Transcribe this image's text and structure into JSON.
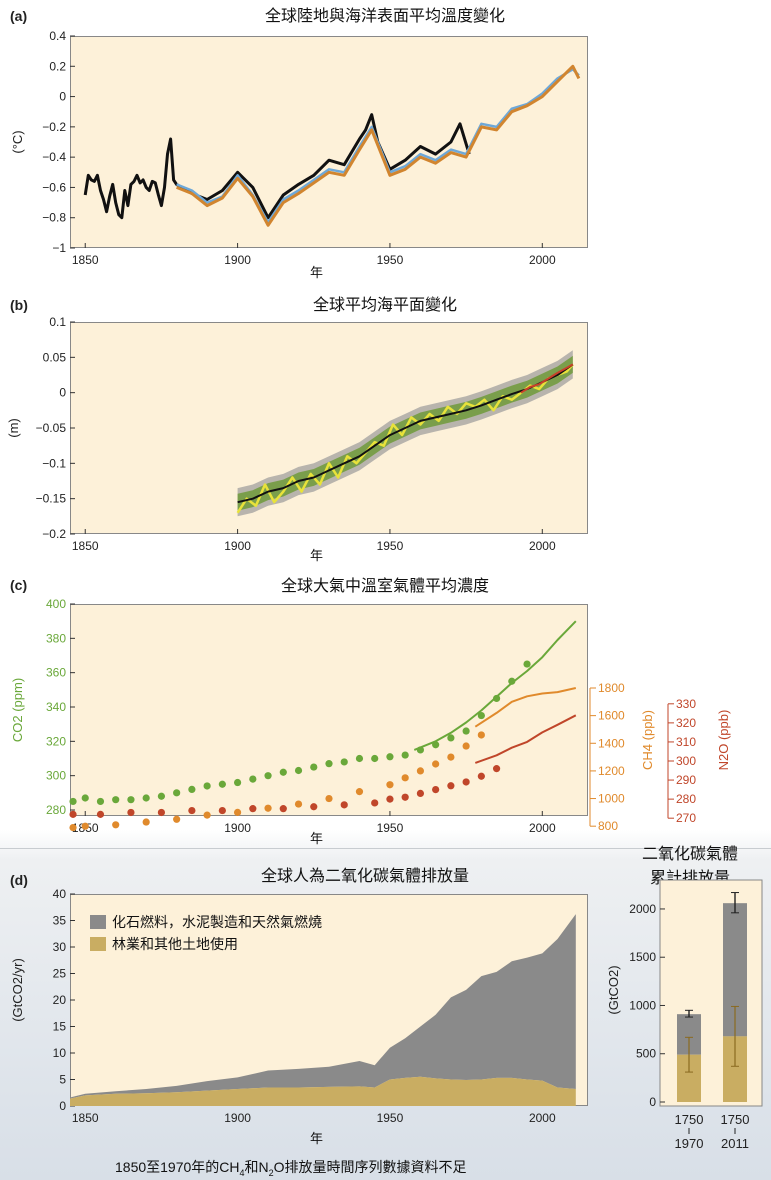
{
  "panels": {
    "a": {
      "letter": "(a)",
      "title": "全球陸地與海洋表面平均溫度變化",
      "xlabel": "年",
      "ylabel": "(°C)"
    },
    "b": {
      "letter": "(b)",
      "title": "全球平均海平面變化",
      "xlabel": "年",
      "ylabel": "(m)"
    },
    "c": {
      "letter": "(c)",
      "title": "全球大氣中溫室氣體平均濃度",
      "xlabel": "年",
      "ylabel_co2": "CO2 (ppm)",
      "ylabel_ch4": "CH4 (ppb)",
      "ylabel_n2o": "N2O (ppb)"
    },
    "d": {
      "letter": "(d)",
      "title": "全球人為二氧化碳氣體排放量",
      "xlabel": "年",
      "ylabel": "(GtCO2/yr)",
      "title_right_line1": "二氧化碳氣體",
      "title_right_line2": "累計排放量",
      "ylabel_right": "(GtCO2)"
    }
  },
  "note": {
    "pre": "1850至1970年的CH",
    "sub1": "4",
    "mid": "和N",
    "sub2": "2",
    "post": "O排放量時間序列數據資料不足"
  },
  "colors": {
    "background": "#fdf1d9",
    "black": "#111111",
    "blue": "#6ea8d8",
    "orange": "#d1852f",
    "gray_band": "#9a9a9a",
    "green_band": "#6f9a3a",
    "yellow": "#e8e23a",
    "red": "#c8402a",
    "co2": "#6aa83a",
    "ch4": "#e08a2c",
    "n2o": "#c0462a",
    "fossil": "#8a8a8a",
    "land": "#c9ad62"
  },
  "chart_data": [
    {
      "type": "line",
      "title": "全球陸地與海洋表面平均溫度變化",
      "xlabel": "年",
      "ylabel": "(°C)",
      "xlim": [
        1845,
        2015
      ],
      "ylim": [
        -1,
        0.4
      ],
      "xticks": [
        1850,
        1900,
        1950,
        2000
      ],
      "yticks": [
        0.4,
        0.2,
        0,
        -0.2,
        -0.4,
        -0.6,
        -0.8,
        -1
      ],
      "ytick_labels": [
        "0.4",
        "0.2",
        "0",
        "−0.2",
        "−0.4",
        "−0.6",
        "−0.8",
        "−1"
      ],
      "series": [
        {
          "color": "#111111",
          "x": [
            1850,
            1851,
            1852,
            1853,
            1854,
            1855,
            1856,
            1857,
            1858,
            1859,
            1860,
            1861,
            1862,
            1863,
            1864,
            1865,
            1866,
            1867,
            1868,
            1869,
            1870,
            1871,
            1872,
            1873,
            1874,
            1875,
            1876,
            1877,
            1878,
            1879,
            1880,
            1885,
            1890,
            1895,
            1900,
            1905,
            1910,
            1915,
            1920,
            1925,
            1930,
            1935,
            1940,
            1942,
            1944,
            1946,
            1950,
            1955,
            1960,
            1965,
            1970,
            1973,
            1976
          ],
          "y": [
            -0.65,
            -0.52,
            -0.55,
            -0.56,
            -0.52,
            -0.62,
            -0.68,
            -0.76,
            -0.66,
            -0.58,
            -0.7,
            -0.78,
            -0.8,
            -0.62,
            -0.72,
            -0.58,
            -0.56,
            -0.52,
            -0.57,
            -0.55,
            -0.6,
            -0.62,
            -0.56,
            -0.57,
            -0.65,
            -0.72,
            -0.6,
            -0.38,
            -0.28,
            -0.55,
            -0.58,
            -0.64,
            -0.68,
            -0.62,
            -0.5,
            -0.6,
            -0.8,
            -0.65,
            -0.58,
            -0.52,
            -0.42,
            -0.45,
            -0.28,
            -0.22,
            -0.12,
            -0.3,
            -0.48,
            -0.42,
            -0.33,
            -0.38,
            -0.3,
            -0.18,
            -0.38
          ]
        },
        {
          "color": "#6ea8d8",
          "x": [
            1880,
            1885,
            1890,
            1895,
            1900,
            1905,
            1910,
            1915,
            1920,
            1925,
            1930,
            1935,
            1940,
            1944,
            1950,
            1955,
            1960,
            1965,
            1970,
            1975,
            1980,
            1985,
            1990,
            1995,
            2000,
            2005,
            2010,
            2012
          ],
          "y": [
            -0.58,
            -0.62,
            -0.7,
            -0.66,
            -0.52,
            -0.65,
            -0.83,
            -0.68,
            -0.62,
            -0.55,
            -0.48,
            -0.5,
            -0.33,
            -0.2,
            -0.5,
            -0.46,
            -0.38,
            -0.42,
            -0.35,
            -0.38,
            -0.18,
            -0.2,
            -0.08,
            -0.05,
            0.02,
            0.12,
            0.18,
            0.14
          ]
        },
        {
          "color": "#d1852f",
          "x": [
            1880,
            1885,
            1890,
            1895,
            1900,
            1905,
            1910,
            1915,
            1920,
            1925,
            1930,
            1935,
            1940,
            1944,
            1950,
            1955,
            1960,
            1965,
            1970,
            1975,
            1980,
            1985,
            1990,
            1995,
            2000,
            2005,
            2010,
            2012
          ],
          "y": [
            -0.6,
            -0.64,
            -0.72,
            -0.67,
            -0.54,
            -0.66,
            -0.85,
            -0.7,
            -0.64,
            -0.57,
            -0.5,
            -0.52,
            -0.35,
            -0.22,
            -0.52,
            -0.48,
            -0.4,
            -0.44,
            -0.37,
            -0.4,
            -0.2,
            -0.22,
            -0.1,
            -0.06,
            0.0,
            0.1,
            0.2,
            0.12
          ]
        }
      ]
    },
    {
      "type": "line",
      "title": "全球平均海平面變化",
      "xlabel": "年",
      "ylabel": "(m)",
      "xlim": [
        1845,
        2015
      ],
      "ylim": [
        -0.2,
        0.1
      ],
      "xticks": [
        1850,
        1900,
        1950,
        2000
      ],
      "yticks": [
        0.1,
        0.05,
        0,
        -0.05,
        -0.1,
        -0.15,
        -0.2
      ],
      "ytick_labels": [
        "0.1",
        "0.05",
        "0",
        "−0.05",
        "−0.1",
        "−0.15",
        "−0.2"
      ],
      "series": [
        {
          "color": "#111111",
          "x": [
            1900,
            1905,
            1910,
            1915,
            1920,
            1925,
            1930,
            1935,
            1940,
            1945,
            1950,
            1955,
            1960,
            1965,
            1970,
            1975,
            1980,
            1985,
            1990,
            1995,
            2000,
            2005,
            2010
          ],
          "y": [
            -0.155,
            -0.15,
            -0.14,
            -0.135,
            -0.125,
            -0.12,
            -0.11,
            -0.1,
            -0.09,
            -0.075,
            -0.06,
            -0.05,
            -0.04,
            -0.035,
            -0.03,
            -0.025,
            -0.018,
            -0.01,
            -0.002,
            0.005,
            0.015,
            0.025,
            0.04
          ]
        },
        {
          "color": "#e8e23a",
          "x": [
            1900,
            1903,
            1906,
            1909,
            1912,
            1915,
            1918,
            1921,
            1924,
            1927,
            1930,
            1933,
            1936,
            1939,
            1942,
            1945,
            1948,
            1951,
            1954,
            1957,
            1960,
            1963,
            1966,
            1969,
            1972,
            1975,
            1978,
            1981,
            1984,
            1987,
            1990,
            1993,
            1996,
            1999,
            2002,
            2005,
            2008,
            2010
          ],
          "y": [
            -0.17,
            -0.15,
            -0.16,
            -0.13,
            -0.155,
            -0.14,
            -0.12,
            -0.14,
            -0.115,
            -0.13,
            -0.1,
            -0.12,
            -0.09,
            -0.1,
            -0.085,
            -0.07,
            -0.075,
            -0.045,
            -0.06,
            -0.035,
            -0.045,
            -0.03,
            -0.04,
            -0.02,
            -0.03,
            -0.015,
            -0.02,
            -0.01,
            -0.025,
            -0.005,
            -0.01,
            0.0,
            0.01,
            0.005,
            0.02,
            0.025,
            0.03,
            0.04
          ]
        },
        {
          "color": "#c8402a",
          "x": [
            1993,
            1996,
            1999,
            2002,
            2005,
            2008,
            2010
          ],
          "y": [
            0.0,
            0.008,
            0.012,
            0.02,
            0.028,
            0.035,
            0.04
          ]
        }
      ]
    },
    {
      "type": "scatter",
      "title": "全球大氣中溫室氣體平均濃度",
      "xlabel": "年",
      "xlim": [
        1845,
        2015
      ],
      "axes": {
        "co2": {
          "label": "CO2 (ppm)",
          "lim": [
            280,
            400
          ],
          "ticks": [
            280,
            300,
            320,
            340,
            360,
            380,
            400
          ]
        },
        "ch4": {
          "label": "CH4 (ppb)",
          "lim": [
            700,
            1800
          ],
          "ticks": [
            800,
            1000,
            1200,
            1400,
            1600,
            1800
          ]
        },
        "n2o": {
          "label": "N2O (ppb)",
          "lim": [
            268,
            332
          ],
          "ticks": [
            270,
            280,
            290,
            300,
            310,
            320,
            330
          ]
        }
      },
      "xticks": [
        1850,
        1900,
        1950,
        2000
      ],
      "series": [
        {
          "name": "CO2",
          "axis": "co2",
          "color": "#6aa83a",
          "points_x": [
            1846,
            1850,
            1855,
            1860,
            1865,
            1870,
            1875,
            1880,
            1885,
            1890,
            1895,
            1900,
            1905,
            1910,
            1915,
            1920,
            1925,
            1930,
            1935,
            1940,
            1945,
            1950,
            1955,
            1960,
            1965,
            1970,
            1975,
            1980,
            1985,
            1990,
            1995
          ],
          "points_y": [
            285,
            287,
            285,
            286,
            286,
            287,
            288,
            290,
            292,
            294,
            295,
            296,
            298,
            300,
            302,
            303,
            305,
            307,
            308,
            310,
            310,
            311,
            312,
            315,
            318,
            322,
            326,
            335,
            345,
            355,
            365
          ],
          "line_x": [
            1958,
            1965,
            1970,
            1975,
            1980,
            1985,
            1990,
            1995,
            2000,
            2005,
            2011
          ],
          "line_y": [
            315,
            320,
            325,
            331,
            338,
            346,
            354,
            361,
            369,
            379,
            390
          ]
        },
        {
          "name": "CH4",
          "axis": "ch4",
          "color": "#e08a2c",
          "points_x": [
            1846,
            1850,
            1860,
            1870,
            1880,
            1890,
            1900,
            1910,
            1920,
            1930,
            1940,
            1950,
            1955,
            1960,
            1965,
            1970,
            1975,
            1980
          ],
          "points_y": [
            790,
            800,
            810,
            830,
            850,
            880,
            900,
            930,
            960,
            1000,
            1050,
            1100,
            1150,
            1200,
            1250,
            1300,
            1380,
            1460
          ],
          "line_x": [
            1978,
            1985,
            1990,
            1995,
            2000,
            2005,
            2011
          ],
          "line_y": [
            1520,
            1620,
            1700,
            1740,
            1760,
            1770,
            1800
          ]
        },
        {
          "name": "N2O",
          "axis": "n2o",
          "color": "#c0462a",
          "points_x": [
            1846,
            1855,
            1865,
            1875,
            1885,
            1895,
            1905,
            1915,
            1925,
            1935,
            1945,
            1950,
            1955,
            1960,
            1965,
            1970,
            1975,
            1980,
            1985
          ],
          "points_y": [
            272,
            272,
            273,
            273,
            274,
            274,
            275,
            275,
            276,
            277,
            278,
            280,
            281,
            283,
            285,
            287,
            289,
            292,
            296
          ],
          "line_x": [
            1978,
            1985,
            1990,
            1995,
            2000,
            2005,
            2011
          ],
          "line_y": [
            299,
            303,
            307,
            310,
            315,
            319,
            324
          ]
        }
      ]
    },
    {
      "type": "area",
      "title": "全球人為二氧化碳氣體排放量",
      "xlabel": "年",
      "ylabel": "(GtCO2/yr)",
      "xlim": [
        1845,
        2015
      ],
      "ylim": [
        0,
        40
      ],
      "xticks": [
        1850,
        1900,
        1950,
        2000
      ],
      "yticks": [
        0,
        5,
        10,
        15,
        20,
        25,
        30,
        35,
        40
      ],
      "series": [
        {
          "name": "化石燃料，水泥製造和天然氣燃燒",
          "color": "#8a8a8a",
          "stacked_top": true,
          "x": [
            1845,
            1850,
            1860,
            1870,
            1880,
            1890,
            1900,
            1910,
            1920,
            1930,
            1940,
            1945,
            1950,
            1955,
            1960,
            1965,
            1970,
            1975,
            1980,
            1985,
            1990,
            1995,
            2000,
            2005,
            2011
          ],
          "y": [
            0.2,
            0.3,
            0.5,
            0.8,
            1.2,
            1.8,
            2.2,
            3.2,
            3.5,
            3.8,
            4.8,
            4.2,
            6,
            7.5,
            9.5,
            12,
            15.5,
            17,
            19.5,
            20,
            22,
            23,
            24,
            28,
            33
          ]
        },
        {
          "name": "林業和其他土地使用",
          "color": "#c9ad62",
          "x": [
            1845,
            1850,
            1860,
            1870,
            1880,
            1890,
            1900,
            1910,
            1920,
            1930,
            1940,
            1945,
            1950,
            1955,
            1960,
            1965,
            1970,
            1975,
            1980,
            1985,
            1990,
            1995,
            2000,
            2005,
            2011
          ],
          "y": [
            1.4,
            2.0,
            2.3,
            2.4,
            2.6,
            2.9,
            3.2,
            3.5,
            3.5,
            3.6,
            3.7,
            3.5,
            5.0,
            5.3,
            5.5,
            5.2,
            5.0,
            4.9,
            5.0,
            5.3,
            5.3,
            5.0,
            4.8,
            3.5,
            3.2
          ]
        }
      ]
    },
    {
      "type": "bar",
      "title": "二氧化碳氣體累計排放量",
      "ylabel": "(GtCO2)",
      "ylim": [
        0,
        2300
      ],
      "yticks": [
        0,
        500,
        1000,
        1500,
        2000
      ],
      "categories": [
        "1750 1970",
        "1750 2011"
      ],
      "category_lines": [
        [
          "1750",
          "1970"
        ],
        [
          "1750",
          "2011"
        ]
      ],
      "series": [
        {
          "name": "林業和其他土地使用",
          "color": "#c9ad62",
          "values": [
            490,
            680
          ],
          "err_low": [
            310,
            370
          ],
          "err_high": [
            670,
            990
          ]
        },
        {
          "name": "化石燃料，水泥製造和天然氣燃燒",
          "color": "#8a8a8a",
          "values": [
            420,
            1380
          ],
          "total_err_low": [
            880,
            1960
          ],
          "total_err_high": [
            950,
            2170
          ]
        }
      ]
    }
  ]
}
